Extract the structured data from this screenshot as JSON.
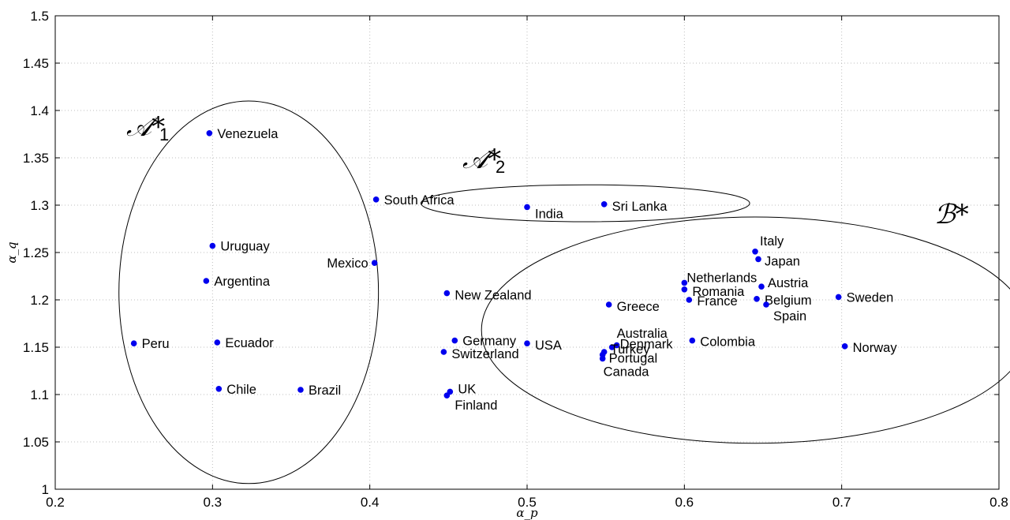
{
  "chart_data": {
    "type": "scatter",
    "title": "",
    "xlabel": "α_p",
    "ylabel": "α_q",
    "xlim": [
      0.2,
      0.8
    ],
    "ylim": [
      1.0,
      1.5
    ],
    "grid": true,
    "x_ticks": [
      "0.2",
      "0.3",
      "0.4",
      "0.5",
      "0.6",
      "0.7",
      "0.8"
    ],
    "y_ticks": [
      "1",
      "1.05",
      "1.1",
      "1.15",
      "1.2",
      "1.25",
      "1.3",
      "1.35",
      "1.4",
      "1.45",
      "1.5"
    ],
    "marker_color": "#0000ee",
    "points": [
      {
        "label": "Venezuela",
        "x": 0.298,
        "y": 1.376
      },
      {
        "label": "Uruguay",
        "x": 0.3,
        "y": 1.257
      },
      {
        "label": "Argentina",
        "x": 0.296,
        "y": 1.22
      },
      {
        "label": "Peru",
        "x": 0.25,
        "y": 1.154
      },
      {
        "label": "Ecuador",
        "x": 0.303,
        "y": 1.155
      },
      {
        "label": "Chile",
        "x": 0.304,
        "y": 1.106
      },
      {
        "label": "Brazil",
        "x": 0.356,
        "y": 1.105
      },
      {
        "label": "Mexico",
        "x": 0.403,
        "y": 1.239
      },
      {
        "label": "South Africa",
        "x": 0.404,
        "y": 1.306
      },
      {
        "label": "India",
        "x": 0.5,
        "y": 1.298
      },
      {
        "label": "Sri Lanka",
        "x": 0.549,
        "y": 1.301
      },
      {
        "label": "New Zealand",
        "x": 0.449,
        "y": 1.207
      },
      {
        "label": "Germany",
        "x": 0.454,
        "y": 1.157
      },
      {
        "label": "Switzerland",
        "x": 0.447,
        "y": 1.145
      },
      {
        "label": "USA",
        "x": 0.5,
        "y": 1.154
      },
      {
        "label": "UK",
        "x": 0.451,
        "y": 1.103
      },
      {
        "label": "Finland",
        "x": 0.449,
        "y": 1.099
      },
      {
        "label": "Greece",
        "x": 0.552,
        "y": 1.195
      },
      {
        "label": "Australia",
        "x": 0.554,
        "y": 1.15
      },
      {
        "label": "Denmark",
        "x": 0.557,
        "y": 1.152
      },
      {
        "label": "Turkey",
        "x": 0.549,
        "y": 1.145
      },
      {
        "label": "Portugal",
        "x": 0.548,
        "y": 1.142
      },
      {
        "label": "Canada",
        "x": 0.548,
        "y": 1.138
      },
      {
        "label": "Netherlands",
        "x": 0.6,
        "y": 1.218
      },
      {
        "label": "Romania",
        "x": 0.6,
        "y": 1.211
      },
      {
        "label": "France",
        "x": 0.603,
        "y": 1.2
      },
      {
        "label": "Colombia",
        "x": 0.605,
        "y": 1.157
      },
      {
        "label": "Italy",
        "x": 0.645,
        "y": 1.251
      },
      {
        "label": "Japan",
        "x": 0.647,
        "y": 1.243
      },
      {
        "label": "Austria",
        "x": 0.649,
        "y": 1.214
      },
      {
        "label": "Belgium",
        "x": 0.646,
        "y": 1.201
      },
      {
        "label": "Spain",
        "x": 0.652,
        "y": 1.195
      },
      {
        "label": "Sweden",
        "x": 0.698,
        "y": 1.203
      },
      {
        "label": "Norway",
        "x": 0.702,
        "y": 1.151
      }
    ],
    "clusters": [
      {
        "label": "𝒜*",
        "sub": "1",
        "cx": 0.323,
        "cy": 1.208,
        "rx": 0.0825,
        "ry": 0.202
      },
      {
        "label": "𝒜*",
        "sub": "2",
        "cx": 0.537,
        "cy": 1.302,
        "rx": 0.1045,
        "ry": 0.0195
      },
      {
        "label": "ℬ*",
        "sub": "",
        "cx": 0.645,
        "cy": 1.168,
        "rx": 0.174,
        "ry": 0.1195
      }
    ]
  }
}
